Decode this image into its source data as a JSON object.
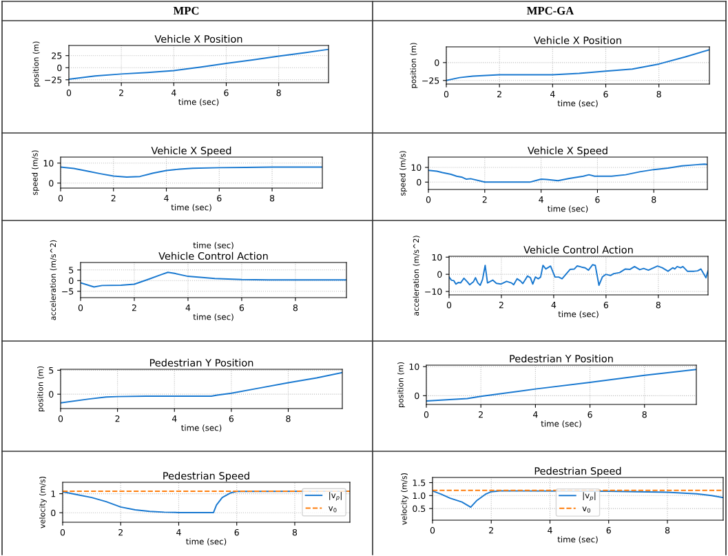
{
  "chart_data": [
    {
      "type": "line",
      "annotations": [
        "MPC"
      ],
      "title": "Vehicle X Position",
      "xlabel": "time (sec)",
      "ylabel": "position (m)",
      "xlim": [
        0,
        9.9
      ],
      "ylim": [
        -31,
        46
      ],
      "xticks": [
        0,
        2,
        4,
        6,
        8
      ],
      "yticks": [
        {
          "value": -25,
          "label": "−25"
        },
        0,
        25
      ],
      "grid": true,
      "series": [
        {
          "color": "#1878d0",
          "x": [
            0,
            1,
            2,
            3,
            4,
            5,
            6,
            7,
            8,
            9,
            9.9
          ],
          "values": [
            -24,
            -17,
            -13,
            -10,
            -6,
            1,
            9,
            16,
            24,
            31,
            38
          ]
        }
      ]
    },
    {
      "type": "line",
      "annotations": [
        "MPC-GA"
      ],
      "title": "Vehicle X Position",
      "xlabel": "time (sec)",
      "ylabel": "position (m)",
      "xlim": [
        0,
        9.9
      ],
      "ylim": [
        -30,
        22
      ],
      "xticks": [
        0,
        2,
        4,
        6,
        8
      ],
      "yticks": [
        {
          "value": -25,
          "label": "−25"
        },
        0
      ],
      "grid": true,
      "series": [
        {
          "color": "#1878d0",
          "x": [
            0,
            0.5,
            1,
            2,
            3,
            4,
            5,
            6,
            7,
            8,
            9,
            9.9
          ],
          "values": [
            -25,
            -21,
            -19,
            -17,
            -17,
            -17,
            -15,
            -12,
            -9,
            -2,
            8,
            18
          ]
        }
      ]
    },
    {
      "type": "line",
      "title": "Vehicle X Speed",
      "xlabel": "time (sec)",
      "ylabel": "speed (m/s)",
      "xlim": [
        0,
        9.9
      ],
      "ylim": [
        -2.5,
        13
      ],
      "xticks": [
        0,
        2,
        4,
        6,
        8
      ],
      "yticks": [
        0,
        10
      ],
      "grid": true,
      "series": [
        {
          "color": "#1878d0",
          "x": [
            0,
            0.5,
            1,
            1.5,
            2,
            2.5,
            3,
            3.5,
            4,
            4.5,
            5,
            6,
            7,
            8,
            9.9
          ],
          "values": [
            8,
            7.3,
            6,
            4.7,
            3.5,
            3,
            3.3,
            5,
            6.3,
            7,
            7.4,
            7.7,
            7.8,
            8,
            8
          ]
        }
      ]
    },
    {
      "type": "line",
      "title": "Vehicle X Speed",
      "xlabel": "time (sec)",
      "ylabel": "speed (m/s)",
      "xlim": [
        0,
        9.9
      ],
      "ylim": [
        -5,
        17
      ],
      "xticks": [
        0,
        2,
        4,
        6,
        8
      ],
      "yticks": [
        0,
        10
      ],
      "grid": true,
      "series": [
        {
          "color": "#1878d0",
          "x": [
            0,
            0.3,
            0.5,
            0.8,
            1,
            1.2,
            1.35,
            1.5,
            2,
            3.6,
            4,
            4.2,
            4.6,
            5,
            5.5,
            5.7,
            5.9,
            6.5,
            7,
            7.5,
            8,
            8.5,
            9,
            9.5,
            9.8,
            9.9
          ],
          "values": [
            8,
            7.4,
            6.5,
            5.3,
            4,
            3.3,
            2,
            2.3,
            0,
            0,
            2,
            1.8,
            1,
            2.5,
            4,
            5,
            4,
            4,
            5,
            7,
            8.5,
            9.5,
            11,
            11.8,
            12.2,
            12
          ]
        }
      ]
    },
    {
      "type": "line",
      "annotations": [
        "time (sec)"
      ],
      "title": "Vehicle Control Action",
      "xlabel": "time (sec)",
      "ylabel": "acceleration (m/s^2)",
      "xlim": [
        0,
        9.9
      ],
      "ylim": [
        -8,
        8.5
      ],
      "xticks": [
        0,
        2,
        4,
        6,
        8
      ],
      "yticks": [
        {
          "value": -5,
          "label": "−5"
        },
        0,
        5
      ],
      "grid": true,
      "series": [
        {
          "color": "#1878d0",
          "x": [
            0,
            0.5,
            0.8,
            1.5,
            2,
            2.5,
            3,
            3.25,
            3.5,
            4,
            5,
            6,
            7,
            9.9
          ],
          "values": [
            -1,
            -3,
            -2.3,
            -2.2,
            -1.7,
            0.5,
            2.8,
            3.9,
            3.4,
            2,
            1,
            0.5,
            0.3,
            0.3
          ]
        }
      ]
    },
    {
      "type": "line",
      "title": "Vehicle Control Action",
      "xlabel": "time (sec)",
      "ylabel": "acceleration (m/s^2)",
      "xlim": [
        0,
        9.9
      ],
      "ylim": [
        -12,
        10.5
      ],
      "xticks": [
        0,
        2,
        4,
        6,
        8
      ],
      "yticks": [
        {
          "value": -10,
          "label": "−10"
        },
        0,
        10
      ],
      "grid": true,
      "series": [
        {
          "color": "#1878d0",
          "x": [
            0,
            0.09,
            0.18,
            0.26,
            0.35,
            0.44,
            0.57,
            0.7,
            0.79,
            0.93,
            1.01,
            1.1,
            1.19,
            1.28,
            1.38,
            1.47,
            1.67,
            1.81,
            1.98,
            2.2,
            2.38,
            2.47,
            2.6,
            2.73,
            2.82,
            3.0,
            3.11,
            3.2,
            3.3,
            3.41,
            3.5,
            3.59,
            3.7,
            3.88,
            4.05,
            4.19,
            4.32,
            4.45,
            4.63,
            4.79,
            4.9,
            5.07,
            5.2,
            5.33,
            5.49,
            5.59,
            5.73,
            5.86,
            5.99,
            6.17,
            6.3,
            6.52,
            6.74,
            6.92,
            7.09,
            7.29,
            7.44,
            7.62,
            7.97,
            8.15,
            8.37,
            8.55,
            8.63,
            8.72,
            8.85,
            8.94,
            9.11,
            9.37,
            9.5,
            9.63,
            9.82,
            9.9
          ],
          "values": [
            -1.6,
            -3.4,
            -3.7,
            -5.7,
            -4.8,
            -5,
            -2.3,
            -4.4,
            -6.1,
            -4.4,
            -2,
            -5,
            -6.4,
            -3,
            5.2,
            -5,
            -3.4,
            -5.3,
            -5.7,
            -4.1,
            -5,
            -6.1,
            -2.6,
            -3.9,
            -5.4,
            -1,
            -2,
            -5.7,
            -1.6,
            -2.6,
            -1.6,
            5.2,
            3.1,
            4.8,
            -1.6,
            -1.6,
            -2.6,
            -0.3,
            2.9,
            3.1,
            4.9,
            4.2,
            3.8,
            2.4,
            5.6,
            5.2,
            -6.4,
            -1.6,
            0,
            -0.7,
            0.4,
            1,
            3.1,
            2.9,
            4.5,
            2.7,
            3.4,
            2.4,
            4.8,
            3.8,
            1.8,
            3.8,
            3.1,
            4.5,
            3.8,
            4.5,
            1.8,
            1.8,
            2,
            3.1,
            -2,
            2
          ]
        }
      ]
    },
    {
      "type": "line",
      "title": "Pedestrian Y Position",
      "xlabel": "time (sec)",
      "ylabel": "position (m)",
      "xlim": [
        0,
        9.9
      ],
      "ylim": [
        -3,
        5.2
      ],
      "xticks": [
        0,
        2,
        4,
        6,
        8
      ],
      "yticks": [
        0,
        5
      ],
      "grid": true,
      "series": [
        {
          "color": "#1878d0",
          "x": [
            0,
            1,
            1.6,
            2,
            3,
            5.3,
            5.5,
            6,
            7,
            8,
            9,
            9.9
          ],
          "values": [
            -1.8,
            -1,
            -0.6,
            -0.5,
            -0.4,
            -0.4,
            -0.2,
            0.2,
            1.3,
            2.4,
            3.4,
            4.5
          ]
        }
      ]
    },
    {
      "type": "line",
      "title": "Pedestrian Y Position",
      "xlabel": "time (sec)",
      "ylabel": "position (m)",
      "xlim": [
        0,
        9.9
      ],
      "ylim": [
        -3,
        10.5
      ],
      "xticks": [
        0,
        2,
        4,
        6,
        8
      ],
      "yticks": [
        0,
        10
      ],
      "grid": true,
      "series": [
        {
          "color": "#1878d0",
          "x": [
            0,
            1.5,
            2,
            4,
            6,
            8,
            9.9
          ],
          "values": [
            -1.8,
            -1,
            -0.2,
            2.3,
            4.6,
            7,
            9
          ]
        }
      ]
    },
    {
      "type": "line",
      "title": "Pedestrian Speed",
      "xlabel": "time (sec)",
      "ylabel": "velocity (m/s)",
      "xlim": [
        0,
        9.9
      ],
      "ylim": [
        -0.5,
        1.6
      ],
      "xticks": [
        0,
        2,
        4,
        6,
        8
      ],
      "yticks": [
        0,
        1
      ],
      "grid": true,
      "legend": "center right",
      "series": [
        {
          "name": "|v$_{p}$|",
          "color": "#1878d0",
          "line_style": "solid",
          "x": [
            0,
            0.5,
            1,
            1.5,
            2,
            2.5,
            3,
            3.5,
            4,
            5.2,
            5.3,
            5.5,
            5.8,
            6,
            9.9
          ],
          "values": [
            1.1,
            0.95,
            0.8,
            0.58,
            0.3,
            0.15,
            0.07,
            0.03,
            0.01,
            0.01,
            0.4,
            0.8,
            1.05,
            1.12,
            1.13
          ]
        },
        {
          "name": "v$_{0}$",
          "color": "#ff7f0e",
          "line_style": "dashed",
          "x": [
            0,
            9.9
          ],
          "values": [
            1.13,
            1.13
          ]
        }
      ]
    },
    {
      "type": "line",
      "title": "Pedestrian Speed",
      "xlabel": "time (sec)",
      "ylabel": "velocity (m/s)",
      "xlim": [
        0,
        9.9
      ],
      "ylim": [
        0.05,
        1.7
      ],
      "xticks": [
        0,
        2,
        4,
        6,
        8
      ],
      "yticks": [
        0.5,
        {
          "value": 1,
          "label": "1.0"
        },
        1.5
      ],
      "grid": true,
      "legend": "bottom",
      "series": [
        {
          "name": "|v$_{p}$|",
          "color": "#1878d0",
          "line_style": "solid",
          "x": [
            0,
            0.3,
            0.6,
            1,
            1.3,
            1.5,
            1.8,
            2,
            2.3,
            6,
            8,
            9,
            9.5,
            9.9
          ],
          "values": [
            1.18,
            1.05,
            0.9,
            0.75,
            0.55,
            0.8,
            1.05,
            1.15,
            1.18,
            1.17,
            1.13,
            1.07,
            1.0,
            0.92
          ]
        },
        {
          "name": "v$_{0}$",
          "color": "#ff7f0e",
          "line_style": "dashed",
          "x": [
            0,
            9.9
          ],
          "values": [
            1.2,
            1.2
          ]
        }
      ]
    }
  ]
}
